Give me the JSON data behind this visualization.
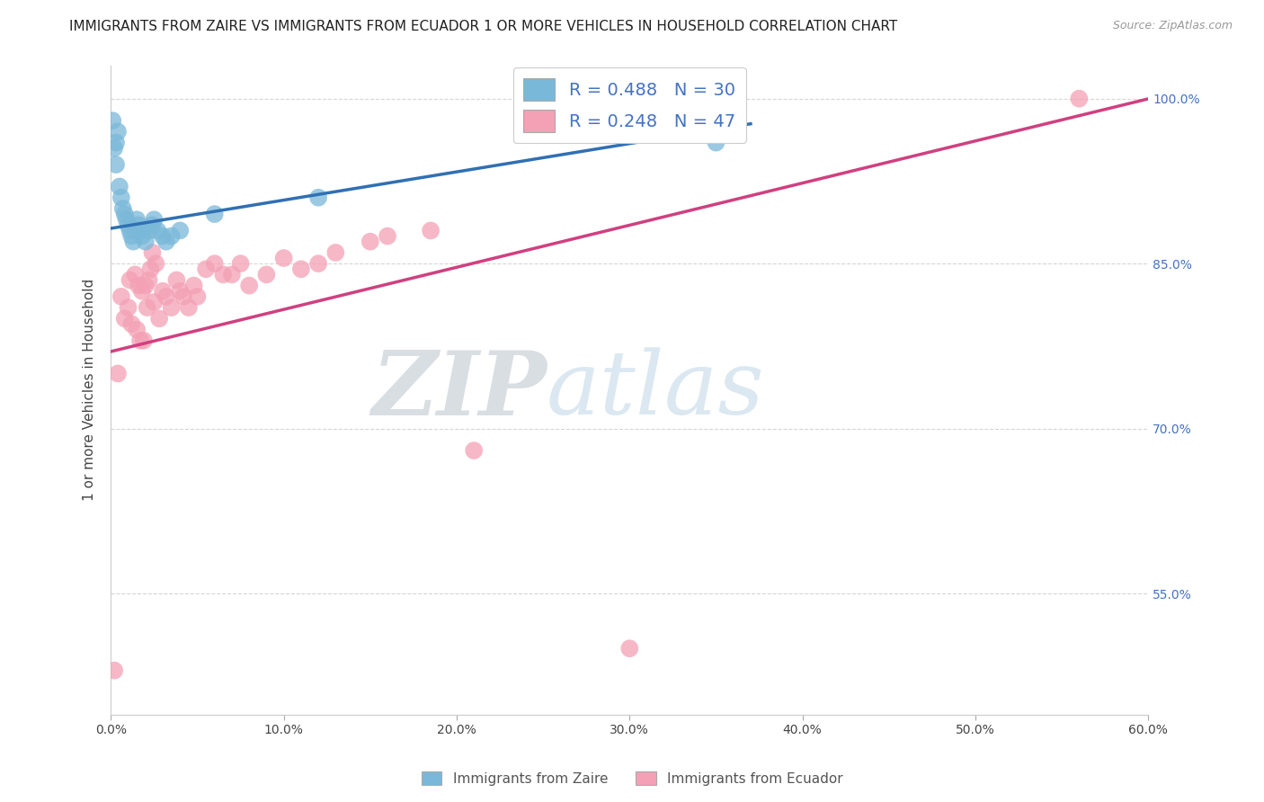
{
  "title": "IMMIGRANTS FROM ZAIRE VS IMMIGRANTS FROM ECUADOR 1 OR MORE VEHICLES IN HOUSEHOLD CORRELATION CHART",
  "source": "Source: ZipAtlas.com",
  "ylabel": "1 or more Vehicles in Household",
  "xlim": [
    0.0,
    0.6
  ],
  "ylim": [
    0.44,
    1.03
  ],
  "xtick_labels": [
    "0.0%",
    "10.0%",
    "20.0%",
    "30.0%",
    "40.0%",
    "50.0%",
    "60.0%"
  ],
  "xtick_values": [
    0.0,
    0.1,
    0.2,
    0.3,
    0.4,
    0.5,
    0.6
  ],
  "ytick_labels": [
    "55.0%",
    "70.0%",
    "85.0%",
    "100.0%"
  ],
  "ytick_values": [
    0.55,
    0.7,
    0.85,
    1.0
  ],
  "zaire_color": "#7ab8d9",
  "ecuador_color": "#f4a0b5",
  "zaire_line_color": "#3070b3",
  "ecuador_line_color": "#d04080",
  "zaire_R": 0.488,
  "zaire_N": 30,
  "ecuador_R": 0.248,
  "ecuador_N": 47,
  "legend_label_zaire": "Immigrants from Zaire",
  "legend_label_ecuador": "Immigrants from Ecuador",
  "legend_R_color": "#4472c4",
  "right_tick_color": "#4472c4",
  "background_color": "#ffffff",
  "grid_color": "#cccccc",
  "title_fontsize": 11,
  "axis_label_fontsize": 11,
  "tick_fontsize": 10,
  "zaire_x": [
    0.001,
    0.002,
    0.003,
    0.003,
    0.004,
    0.005,
    0.006,
    0.007,
    0.008,
    0.009,
    0.01,
    0.011,
    0.012,
    0.013,
    0.015,
    0.016,
    0.017,
    0.018,
    0.02,
    0.022,
    0.024,
    0.025,
    0.027,
    0.03,
    0.032,
    0.035,
    0.04,
    0.06,
    0.12,
    0.35
  ],
  "zaire_y": [
    0.98,
    0.955,
    0.94,
    0.96,
    0.97,
    0.92,
    0.91,
    0.9,
    0.895,
    0.89,
    0.885,
    0.88,
    0.875,
    0.87,
    0.89,
    0.885,
    0.88,
    0.875,
    0.87,
    0.88,
    0.885,
    0.89,
    0.88,
    0.875,
    0.87,
    0.875,
    0.88,
    0.895,
    0.91,
    0.96
  ],
  "ecuador_x": [
    0.002,
    0.004,
    0.006,
    0.008,
    0.01,
    0.011,
    0.012,
    0.014,
    0.015,
    0.016,
    0.017,
    0.018,
    0.019,
    0.02,
    0.021,
    0.022,
    0.023,
    0.024,
    0.025,
    0.026,
    0.028,
    0.03,
    0.032,
    0.035,
    0.038,
    0.04,
    0.042,
    0.045,
    0.048,
    0.05,
    0.055,
    0.06,
    0.065,
    0.07,
    0.075,
    0.08,
    0.09,
    0.1,
    0.11,
    0.12,
    0.13,
    0.15,
    0.16,
    0.185,
    0.21,
    0.3,
    0.56
  ],
  "ecuador_y": [
    0.48,
    0.75,
    0.82,
    0.8,
    0.81,
    0.835,
    0.795,
    0.84,
    0.79,
    0.83,
    0.78,
    0.825,
    0.78,
    0.83,
    0.81,
    0.835,
    0.845,
    0.86,
    0.815,
    0.85,
    0.8,
    0.825,
    0.82,
    0.81,
    0.835,
    0.825,
    0.82,
    0.81,
    0.83,
    0.82,
    0.845,
    0.85,
    0.84,
    0.84,
    0.85,
    0.83,
    0.84,
    0.855,
    0.845,
    0.85,
    0.86,
    0.87,
    0.875,
    0.88,
    0.68,
    0.5,
    1.0
  ],
  "watermark_text": "ZIPatlas",
  "watermark_color": "#d8e8f0",
  "watermark_color2": "#c8d8e8"
}
